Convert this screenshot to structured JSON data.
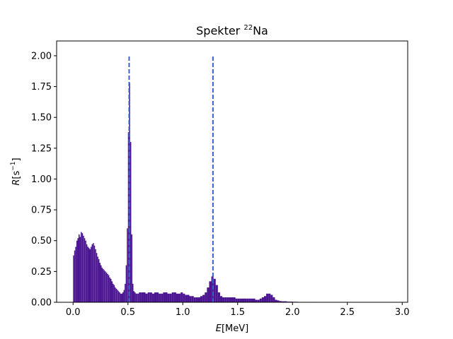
{
  "chart_data": {
    "type": "bar",
    "title": {
      "prefix": "Spekter ",
      "sup": "22",
      "suffix": "Na"
    },
    "xlabel": {
      "var": "E",
      "unit": "[MeV]"
    },
    "ylabel": {
      "var": "R",
      "unit_open": "[s",
      "sup": "−1",
      "unit_close": "]"
    },
    "xlim": [
      -0.15,
      3.05
    ],
    "ylim": [
      0,
      2.12
    ],
    "x_ticks": [
      0.0,
      0.5,
      1.0,
      1.5,
      2.0,
      2.5,
      3.0
    ],
    "x_tick_labels": [
      "0.0",
      "0.5",
      "1.0",
      "1.5",
      "2.0",
      "2.5",
      "3.0"
    ],
    "y_ticks": [
      0.0,
      0.25,
      0.5,
      0.75,
      1.0,
      1.25,
      1.5,
      1.75,
      2.0
    ],
    "y_tick_labels": [
      "0.00",
      "0.25",
      "0.50",
      "0.75",
      "1.00",
      "1.25",
      "1.50",
      "1.75",
      "2.00"
    ],
    "bar_color": "#4b1591",
    "line_color": "#3a5fcd",
    "reference_lines": [
      {
        "x": 0.511,
        "y_range": [
          0,
          2.0
        ],
        "style": "dashed"
      },
      {
        "x": 1.275,
        "y_range": [
          0,
          2.0
        ],
        "style": "dashed"
      }
    ],
    "histogram": [
      [
        0.0,
        0.38
      ],
      [
        0.01,
        0.42
      ],
      [
        0.02,
        0.45
      ],
      [
        0.03,
        0.5
      ],
      [
        0.04,
        0.52
      ],
      [
        0.05,
        0.55
      ],
      [
        0.06,
        0.53
      ],
      [
        0.07,
        0.57
      ],
      [
        0.08,
        0.56
      ],
      [
        0.09,
        0.54
      ],
      [
        0.1,
        0.52
      ],
      [
        0.11,
        0.5
      ],
      [
        0.12,
        0.47
      ],
      [
        0.13,
        0.45
      ],
      [
        0.14,
        0.44
      ],
      [
        0.15,
        0.43
      ],
      [
        0.16,
        0.45
      ],
      [
        0.17,
        0.47
      ],
      [
        0.18,
        0.48
      ],
      [
        0.19,
        0.46
      ],
      [
        0.2,
        0.43
      ],
      [
        0.21,
        0.4
      ],
      [
        0.22,
        0.37
      ],
      [
        0.23,
        0.35
      ],
      [
        0.24,
        0.32
      ],
      [
        0.25,
        0.3
      ],
      [
        0.26,
        0.28
      ],
      [
        0.27,
        0.27
      ],
      [
        0.28,
        0.26
      ],
      [
        0.29,
        0.25
      ],
      [
        0.3,
        0.24
      ],
      [
        0.31,
        0.23
      ],
      [
        0.32,
        0.22
      ],
      [
        0.33,
        0.2
      ],
      [
        0.34,
        0.19
      ],
      [
        0.35,
        0.17
      ],
      [
        0.36,
        0.15
      ],
      [
        0.37,
        0.14
      ],
      [
        0.38,
        0.12
      ],
      [
        0.39,
        0.11
      ],
      [
        0.4,
        0.1
      ],
      [
        0.41,
        0.09
      ],
      [
        0.42,
        0.08
      ],
      [
        0.43,
        0.07
      ],
      [
        0.44,
        0.07
      ],
      [
        0.45,
        0.08
      ],
      [
        0.46,
        0.1
      ],
      [
        0.47,
        0.15
      ],
      [
        0.48,
        0.3
      ],
      [
        0.49,
        0.6
      ],
      [
        0.5,
        1.38
      ],
      [
        0.51,
        1.78
      ],
      [
        0.52,
        1.3
      ],
      [
        0.53,
        0.55
      ],
      [
        0.54,
        0.15
      ],
      [
        0.55,
        0.09
      ],
      [
        0.56,
        0.08
      ],
      [
        0.57,
        0.07
      ],
      [
        0.58,
        0.07
      ],
      [
        0.59,
        0.07
      ],
      [
        0.6,
        0.08
      ],
      [
        0.62,
        0.08
      ],
      [
        0.64,
        0.08
      ],
      [
        0.66,
        0.07
      ],
      [
        0.68,
        0.08
      ],
      [
        0.7,
        0.08
      ],
      [
        0.72,
        0.07
      ],
      [
        0.74,
        0.08
      ],
      [
        0.76,
        0.08
      ],
      [
        0.78,
        0.07
      ],
      [
        0.8,
        0.07
      ],
      [
        0.82,
        0.08
      ],
      [
        0.84,
        0.08
      ],
      [
        0.86,
        0.07
      ],
      [
        0.88,
        0.07
      ],
      [
        0.9,
        0.08
      ],
      [
        0.92,
        0.08
      ],
      [
        0.94,
        0.07
      ],
      [
        0.96,
        0.07
      ],
      [
        0.98,
        0.08
      ],
      [
        1.0,
        0.07
      ],
      [
        1.02,
        0.06
      ],
      [
        1.04,
        0.06
      ],
      [
        1.06,
        0.05
      ],
      [
        1.08,
        0.05
      ],
      [
        1.1,
        0.04
      ],
      [
        1.12,
        0.04
      ],
      [
        1.14,
        0.04
      ],
      [
        1.16,
        0.05
      ],
      [
        1.18,
        0.06
      ],
      [
        1.2,
        0.08
      ],
      [
        1.22,
        0.12
      ],
      [
        1.24,
        0.17
      ],
      [
        1.26,
        0.21
      ],
      [
        1.27,
        0.22
      ],
      [
        1.28,
        0.19
      ],
      [
        1.3,
        0.14
      ],
      [
        1.32,
        0.08
      ],
      [
        1.34,
        0.05
      ],
      [
        1.36,
        0.04
      ],
      [
        1.38,
        0.04
      ],
      [
        1.4,
        0.04
      ],
      [
        1.42,
        0.04
      ],
      [
        1.44,
        0.04
      ],
      [
        1.46,
        0.04
      ],
      [
        1.48,
        0.03
      ],
      [
        1.5,
        0.03
      ],
      [
        1.52,
        0.03
      ],
      [
        1.54,
        0.03
      ],
      [
        1.56,
        0.03
      ],
      [
        1.58,
        0.03
      ],
      [
        1.6,
        0.03
      ],
      [
        1.62,
        0.03
      ],
      [
        1.64,
        0.03
      ],
      [
        1.66,
        0.02
      ],
      [
        1.68,
        0.02
      ],
      [
        1.7,
        0.03
      ],
      [
        1.72,
        0.04
      ],
      [
        1.74,
        0.05
      ],
      [
        1.76,
        0.07
      ],
      [
        1.78,
        0.07
      ],
      [
        1.8,
        0.06
      ],
      [
        1.82,
        0.04
      ],
      [
        1.84,
        0.02
      ],
      [
        1.86,
        0.015
      ],
      [
        1.88,
        0.01
      ],
      [
        1.9,
        0.008
      ],
      [
        1.95,
        0.005
      ],
      [
        2.0,
        0.004
      ],
      [
        2.05,
        0.003
      ],
      [
        2.1,
        0.003
      ],
      [
        2.2,
        0.002
      ],
      [
        2.3,
        0.002
      ],
      [
        2.4,
        0.001
      ],
      [
        2.5,
        0.001
      ],
      [
        2.6,
        0.001
      ],
      [
        2.7,
        0.001
      ],
      [
        2.8,
        0.001
      ],
      [
        2.9,
        0.001
      ]
    ]
  }
}
